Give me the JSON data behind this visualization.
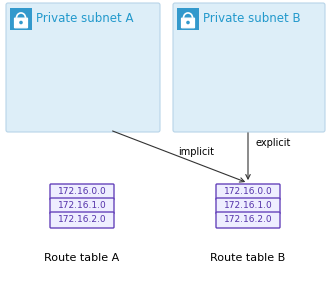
{
  "subnet_a_label": "Private subnet A",
  "subnet_b_label": "Private subnet B",
  "route_table_a_label": "Route table A",
  "route_table_b_label": "Route table B",
  "route_entries": [
    "172.16.0.0",
    "172.16.1.0",
    "172.16.2.0"
  ],
  "implicit_label": "implicit",
  "explicit_label": "explicit",
  "subnet_bg_color": "#ddeef8",
  "subnet_border_color": "#b8d4e8",
  "route_box_color": "#6644bb",
  "route_box_fill": "#eeeeff",
  "route_text_color": "#5533aa",
  "label_color": "#2299cc",
  "arrow_color": "#333333",
  "lock_bg_color": "#3399cc",
  "lock_icon_color": "#ffffff",
  "font_size_subnet": 8.5,
  "font_size_route": 6.5,
  "font_size_label": 8,
  "font_size_arrow_label": 7
}
